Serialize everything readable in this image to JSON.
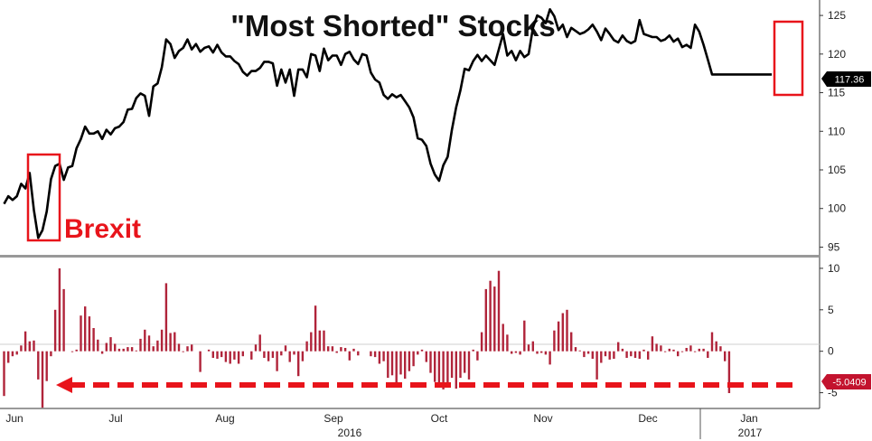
{
  "chart_data": [
    {
      "type": "line",
      "title": "\"Most Shorted\" Stocks",
      "annotation": "Brexit",
      "last_value_label": "117.36",
      "ylim": [
        94,
        127
      ],
      "yticks": [
        95,
        100,
        105,
        110,
        115,
        120,
        125
      ],
      "line_color": "#000000",
      "highlight_color": "#e8141b",
      "series": [
        {
          "x": [
            0,
            1,
            2,
            3,
            4,
            5,
            6,
            7,
            8,
            9,
            10,
            11,
            12,
            13,
            14,
            15,
            16,
            17,
            18,
            19,
            20,
            21,
            22,
            23,
            24,
            25,
            26,
            27,
            28,
            29,
            30,
            31,
            32,
            33,
            34,
            35,
            36,
            37,
            38,
            39,
            40,
            41,
            42,
            43,
            44,
            45,
            46,
            47,
            48,
            49,
            50,
            51,
            52,
            53,
            54,
            55,
            56,
            57,
            58,
            59,
            60,
            61,
            62,
            63,
            64,
            65,
            66,
            67,
            68,
            69,
            70,
            71,
            72,
            73,
            74,
            75,
            76,
            77,
            78,
            79,
            80,
            81,
            82,
            83,
            84,
            85,
            86,
            87,
            88,
            89,
            90,
            91,
            92,
            93,
            94,
            95,
            96,
            97,
            98,
            99,
            100,
            101,
            102,
            103,
            104,
            105,
            106,
            107,
            108,
            109,
            110,
            111,
            112,
            113,
            114,
            115,
            116,
            117,
            118,
            119,
            120,
            121,
            122,
            123,
            124,
            125,
            126,
            127,
            128,
            129,
            130,
            131,
            132,
            133,
            134,
            135,
            136,
            137,
            138,
            139,
            140,
            141,
            142,
            143,
            144,
            145,
            146,
            147,
            148,
            149,
            150,
            151,
            152,
            153,
            154,
            155,
            156,
            157,
            158,
            159,
            160,
            161,
            162,
            163,
            164,
            165,
            166,
            167,
            168,
            169,
            170,
            171,
            172,
            173,
            174,
            175,
            176,
            177,
            178,
            179,
            180,
            181,
            182,
            183,
            184,
            185,
            186,
            187,
            188,
            189,
            190,
            191
          ],
          "values": [
            100.6,
            101.6,
            101.1,
            101.6,
            103.2,
            102.6,
            104.6,
            99.8,
            96.2,
            97.2,
            99.6,
            103.8,
            105.5,
            105.8,
            103.7,
            105.3,
            105.5,
            107.8,
            109.0,
            110.6,
            109.7,
            109.7,
            110.0,
            109.0,
            110.2,
            109.6,
            110.4,
            110.6,
            111.2,
            112.8,
            112.9,
            114.3,
            114.9,
            114.6,
            112.0,
            115.8,
            116.2,
            118.3,
            121.9,
            121.3,
            119.5,
            120.4,
            120.8,
            121.9,
            120.6,
            121.3,
            120.3,
            120.8,
            121.0,
            120.2,
            121.2,
            120.2,
            119.7,
            119.7,
            119.1,
            118.7,
            117.7,
            117.2,
            117.8,
            117.8,
            118.2,
            119.0,
            119.0,
            118.8,
            115.9,
            118.0,
            116.3,
            118.0,
            114.6,
            118.0,
            118.0,
            117.0,
            120.0,
            119.8,
            117.8,
            120.7,
            119.2,
            119.8,
            119.8,
            118.6,
            120.0,
            120.3,
            119.3,
            118.7,
            120.0,
            119.8,
            117.6,
            116.7,
            116.3,
            114.7,
            114.2,
            114.8,
            114.4,
            114.7,
            113.9,
            113.1,
            111.8,
            109.1,
            108.9,
            108.1,
            105.8,
            104.4,
            103.6,
            105.6,
            106.7,
            110.2,
            113.1,
            115.3,
            118.1,
            117.9,
            119.1,
            119.9,
            119.1,
            119.8,
            119.2,
            118.6,
            120.6,
            122.6,
            119.8,
            120.4,
            119.2,
            120.4,
            119.6,
            120.0,
            123.4,
            125.0,
            124.7,
            124.0,
            125.8,
            124.9,
            123.1,
            123.8,
            122.2,
            123.4,
            123.0,
            122.6,
            122.8,
            123.2,
            123.8,
            122.9,
            121.8,
            123.3,
            122.6,
            121.8,
            121.5,
            122.4,
            121.7,
            121.4,
            121.7,
            124.4,
            122.6,
            122.4,
            122.2,
            122.2,
            121.7,
            121.9,
            122.4,
            121.6,
            122.0,
            120.9,
            121.2,
            120.8,
            123.8,
            122.9,
            121.2,
            119.3,
            117.36,
            117.36,
            117.36,
            117.36,
            117.36,
            117.36,
            117.36,
            117.36,
            117.36,
            117.36,
            117.36,
            117.36,
            117.36,
            117.36,
            117.36,
            117.36,
            117.36,
            117.36,
            117.36,
            117.36,
            117.36,
            117.36,
            117.36,
            117.36,
            117.36,
            117.36
          ]
        }
      ]
    },
    {
      "type": "bar",
      "last_value_label": "-5.0409",
      "ylim": [
        -6.9,
        11.3
      ],
      "yticks": [
        10,
        5,
        0,
        -5
      ],
      "bar_color": "#b0243a",
      "arrow_color": "#e8141b",
      "series": [
        {
          "values": [
            -5.4,
            -1.4,
            -0.6,
            -0.4,
            0.7,
            2.4,
            1.2,
            1.3,
            -3.4,
            -6.8,
            -3.6,
            -0.6,
            5.0,
            10.0,
            7.5,
            0.0,
            -0.1,
            0.2,
            4.3,
            5.4,
            4.2,
            2.8,
            1.4,
            -0.3,
            1.0,
            1.7,
            0.9,
            0.3,
            0.3,
            0.5,
            0.5,
            0.1,
            1.5,
            2.6,
            1.9,
            0.6,
            1.3,
            2.6,
            8.2,
            2.2,
            2.3,
            0.9,
            -0.1,
            0.6,
            0.8,
            0.0,
            -2.5,
            0.0,
            0.2,
            -0.8,
            -0.9,
            -0.7,
            -1.3,
            -1.5,
            -1.0,
            -1.5,
            -0.6,
            0.0,
            -1.0,
            0.8,
            2.0,
            -0.8,
            -1.2,
            -0.8,
            -2.4,
            -0.5,
            0.7,
            -1.3,
            -0.4,
            -3.0,
            -1.2,
            1.2,
            2.3,
            5.5,
            2.5,
            2.5,
            0.6,
            0.6,
            -0.2,
            0.5,
            0.4,
            -1.1,
            0.3,
            -0.5,
            0.0,
            0.0,
            -0.6,
            -0.7,
            -1.5,
            -1.2,
            -3.2,
            -2.9,
            -4.2,
            -2.8,
            -3.3,
            -2.4,
            -1.8,
            -0.4,
            0.2,
            -1.3,
            -2.6,
            -3.7,
            -3.8,
            -4.6,
            -4.3,
            -3.2,
            -4.5,
            -3.2,
            -2.6,
            -3.4,
            0.2,
            -1.1,
            2.3,
            7.5,
            8.5,
            7.8,
            9.7,
            3.3,
            2.0,
            -0.3,
            -0.2,
            -0.4,
            3.7,
            0.8,
            1.2,
            -0.3,
            -0.2,
            -0.4,
            -1.6,
            2.5,
            3.6,
            4.6,
            5.0,
            2.3,
            0.5,
            0.1,
            -0.7,
            -0.3,
            -0.9,
            -3.4,
            -1.4,
            -0.6,
            -1.0,
            -0.9,
            1.1,
            0.3,
            -0.8,
            -0.6,
            -0.8,
            -0.9,
            0.2,
            -1.0,
            1.8,
            0.9,
            0.7,
            -0.1,
            0.3,
            0.2,
            -0.6,
            -0.1,
            0.4,
            0.7,
            -0.1,
            0.3,
            0.3,
            -0.8,
            2.3,
            1.2,
            0.6,
            -1.2,
            -5.0409,
            0,
            0,
            0,
            0,
            0,
            0,
            0,
            0,
            0,
            0,
            0,
            0,
            0,
            0,
            0,
            0,
            0,
            0,
            0,
            0,
            0,
            0,
            0,
            0,
            0,
            0
          ]
        }
      ]
    }
  ],
  "x_axis": {
    "months": [
      "Jun",
      "Jul",
      "Aug",
      "Sep",
      "Oct",
      "Nov",
      "Dec",
      "Jan"
    ],
    "years": [
      "2016",
      "2017"
    ]
  }
}
